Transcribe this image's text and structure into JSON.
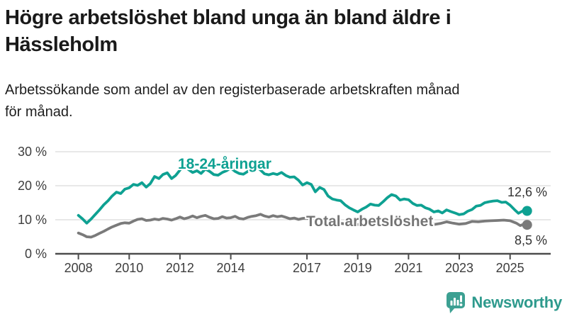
{
  "header": {
    "title_lines": [
      "Högre arbetslöshet bland unga än bland äldre i",
      "Hässleholm"
    ],
    "subtitle_lines": [
      "Arbetssökande som andel av den registerbaserade arbetskraften månad",
      "för månad."
    ]
  },
  "chart_data": {
    "type": "line",
    "title": "Högre arbetslöshet bland unga än bland äldre i Hässleholm",
    "subtitle": "Arbetssökande som andel av den registerbaserade arbetskraften månad för månad.",
    "x_axis": {
      "values": [
        2008,
        2010,
        2012,
        2014,
        2017,
        2019,
        2021,
        2023,
        2025
      ],
      "labels": [
        "2008",
        "2010",
        "2012",
        "2014",
        "2017",
        "2019",
        "2021",
        "2023",
        "2025"
      ]
    },
    "y_axis": {
      "values": [
        30,
        20,
        10,
        0
      ],
      "labels": [
        "30 %",
        "20 %",
        "10 %",
        "0 %"
      ]
    },
    "xlim": [
      2007.09,
      2026.6
    ],
    "ylim": [
      0,
      30
    ],
    "grid": "horizontal",
    "legend_position": "inline-labels",
    "gridline_color": "#d9d9d9",
    "axis_color": "#4d4d4d",
    "series": [
      {
        "name": "18-24-åringar",
        "color": "#0ea192",
        "end_label": "12,6 %",
        "end_value": 12.6,
        "points": [
          [
            2008.0,
            11.3
          ],
          [
            2008.17,
            10.2
          ],
          [
            2008.33,
            9.0
          ],
          [
            2008.5,
            10.2
          ],
          [
            2008.67,
            11.6
          ],
          [
            2008.83,
            12.9
          ],
          [
            2009.0,
            14.4
          ],
          [
            2009.17,
            15.6
          ],
          [
            2009.33,
            17.0
          ],
          [
            2009.5,
            18.1
          ],
          [
            2009.67,
            17.7
          ],
          [
            2009.83,
            19.0
          ],
          [
            2010.0,
            19.4
          ],
          [
            2010.17,
            20.4
          ],
          [
            2010.33,
            20.1
          ],
          [
            2010.5,
            20.9
          ],
          [
            2010.67,
            19.6
          ],
          [
            2010.83,
            20.6
          ],
          [
            2011.0,
            22.7
          ],
          [
            2011.17,
            22.1
          ],
          [
            2011.33,
            23.3
          ],
          [
            2011.5,
            23.8
          ],
          [
            2011.67,
            22.1
          ],
          [
            2011.83,
            23.0
          ],
          [
            2012.0,
            24.6
          ],
          [
            2012.17,
            26.0
          ],
          [
            2012.33,
            24.8
          ],
          [
            2012.5,
            23.9
          ],
          [
            2012.67,
            24.4
          ],
          [
            2012.83,
            23.6
          ],
          [
            2013.0,
            24.9
          ],
          [
            2013.17,
            24.2
          ],
          [
            2013.33,
            23.3
          ],
          [
            2013.5,
            23.1
          ],
          [
            2013.67,
            23.9
          ],
          [
            2013.83,
            24.4
          ],
          [
            2014.0,
            25.2
          ],
          [
            2014.17,
            24.2
          ],
          [
            2014.33,
            23.6
          ],
          [
            2014.5,
            23.4
          ],
          [
            2014.67,
            24.2
          ],
          [
            2014.83,
            24.9
          ],
          [
            2015.0,
            25.7
          ],
          [
            2015.17,
            24.6
          ],
          [
            2015.33,
            23.5
          ],
          [
            2015.5,
            23.2
          ],
          [
            2015.67,
            23.6
          ],
          [
            2015.83,
            23.3
          ],
          [
            2016.0,
            23.9
          ],
          [
            2016.17,
            23.0
          ],
          [
            2016.33,
            22.5
          ],
          [
            2016.5,
            22.6
          ],
          [
            2016.67,
            21.6
          ],
          [
            2016.83,
            20.2
          ],
          [
            2017.0,
            20.9
          ],
          [
            2017.17,
            20.4
          ],
          [
            2017.33,
            18.2
          ],
          [
            2017.5,
            19.5
          ],
          [
            2017.67,
            18.9
          ],
          [
            2017.83,
            17.0
          ],
          [
            2018.0,
            16.1
          ],
          [
            2018.17,
            15.8
          ],
          [
            2018.33,
            15.6
          ],
          [
            2018.5,
            14.4
          ],
          [
            2018.67,
            13.5
          ],
          [
            2018.83,
            12.9
          ],
          [
            2019.0,
            12.3
          ],
          [
            2019.17,
            13.1
          ],
          [
            2019.33,
            13.7
          ],
          [
            2019.5,
            14.6
          ],
          [
            2019.67,
            14.3
          ],
          [
            2019.83,
            14.2
          ],
          [
            2020.0,
            15.3
          ],
          [
            2020.17,
            16.5
          ],
          [
            2020.33,
            17.4
          ],
          [
            2020.5,
            17.0
          ],
          [
            2020.67,
            15.8
          ],
          [
            2020.83,
            16.1
          ],
          [
            2021.0,
            15.9
          ],
          [
            2021.17,
            14.8
          ],
          [
            2021.33,
            14.2
          ],
          [
            2021.5,
            14.3
          ],
          [
            2021.67,
            13.5
          ],
          [
            2021.83,
            13.1
          ],
          [
            2022.0,
            12.3
          ],
          [
            2022.17,
            12.6
          ],
          [
            2022.33,
            12.0
          ],
          [
            2022.5,
            12.9
          ],
          [
            2022.67,
            12.4
          ],
          [
            2022.83,
            12.0
          ],
          [
            2023.0,
            11.5
          ],
          [
            2023.17,
            11.7
          ],
          [
            2023.33,
            12.5
          ],
          [
            2023.5,
            13.0
          ],
          [
            2023.67,
            14.0
          ],
          [
            2023.83,
            14.2
          ],
          [
            2024.0,
            15.0
          ],
          [
            2024.17,
            15.3
          ],
          [
            2024.33,
            15.5
          ],
          [
            2024.5,
            15.6
          ],
          [
            2024.67,
            15.1
          ],
          [
            2024.83,
            15.2
          ],
          [
            2025.0,
            14.3
          ],
          [
            2025.17,
            13.0
          ],
          [
            2025.33,
            11.9
          ],
          [
            2025.5,
            12.6
          ],
          [
            2025.58,
            13.3
          ],
          [
            2025.67,
            12.6
          ]
        ]
      },
      {
        "name": "Total arbetslöshet",
        "color": "#7a7a7a",
        "end_label": "8,5 %",
        "end_value": 8.5,
        "points": [
          [
            2008.0,
            6.1
          ],
          [
            2008.17,
            5.6
          ],
          [
            2008.33,
            5.0
          ],
          [
            2008.5,
            4.9
          ],
          [
            2008.67,
            5.4
          ],
          [
            2008.83,
            6.0
          ],
          [
            2009.0,
            6.6
          ],
          [
            2009.17,
            7.3
          ],
          [
            2009.33,
            7.9
          ],
          [
            2009.5,
            8.4
          ],
          [
            2009.67,
            8.9
          ],
          [
            2009.83,
            9.1
          ],
          [
            2010.0,
            9.0
          ],
          [
            2010.17,
            9.6
          ],
          [
            2010.33,
            10.1
          ],
          [
            2010.5,
            10.3
          ],
          [
            2010.67,
            9.8
          ],
          [
            2010.83,
            9.9
          ],
          [
            2011.0,
            10.2
          ],
          [
            2011.17,
            10.0
          ],
          [
            2011.33,
            10.4
          ],
          [
            2011.5,
            10.2
          ],
          [
            2011.67,
            9.9
          ],
          [
            2011.83,
            10.3
          ],
          [
            2012.0,
            10.8
          ],
          [
            2012.17,
            10.3
          ],
          [
            2012.33,
            10.6
          ],
          [
            2012.5,
            11.1
          ],
          [
            2012.67,
            10.6
          ],
          [
            2012.83,
            11.0
          ],
          [
            2013.0,
            11.3
          ],
          [
            2013.17,
            10.7
          ],
          [
            2013.33,
            10.3
          ],
          [
            2013.5,
            10.4
          ],
          [
            2013.67,
            10.9
          ],
          [
            2013.83,
            10.5
          ],
          [
            2014.0,
            10.6
          ],
          [
            2014.17,
            11.0
          ],
          [
            2014.33,
            10.4
          ],
          [
            2014.5,
            10.2
          ],
          [
            2014.67,
            10.7
          ],
          [
            2014.83,
            11.0
          ],
          [
            2015.0,
            11.2
          ],
          [
            2015.17,
            11.6
          ],
          [
            2015.33,
            11.1
          ],
          [
            2015.5,
            10.8
          ],
          [
            2015.67,
            11.2
          ],
          [
            2015.83,
            10.9
          ],
          [
            2016.0,
            11.1
          ],
          [
            2016.17,
            10.7
          ],
          [
            2016.33,
            10.3
          ],
          [
            2016.5,
            10.5
          ],
          [
            2016.67,
            10.1
          ],
          [
            2016.83,
            10.4
          ],
          [
            2017.0,
            10.5
          ],
          [
            2017.17,
            10.0
          ],
          [
            2017.33,
            9.7
          ],
          [
            2017.5,
            9.9
          ],
          [
            2017.67,
            9.6
          ],
          [
            2017.83,
            9.4
          ],
          [
            2018.0,
            9.3
          ],
          [
            2018.25,
            9.0
          ],
          [
            2018.5,
            8.8
          ],
          [
            2018.75,
            8.7
          ],
          [
            2019.0,
            8.6
          ],
          [
            2019.25,
            8.8
          ],
          [
            2019.5,
            9.0
          ],
          [
            2019.75,
            9.2
          ],
          [
            2020.0,
            9.5
          ],
          [
            2020.25,
            10.2
          ],
          [
            2020.5,
            10.4
          ],
          [
            2020.75,
            10.1
          ],
          [
            2021.0,
            9.9
          ],
          [
            2021.25,
            9.5
          ],
          [
            2021.5,
            9.2
          ],
          [
            2021.75,
            8.9
          ],
          [
            2022.0,
            8.6
          ],
          [
            2022.25,
            8.9
          ],
          [
            2022.5,
            9.4
          ],
          [
            2022.75,
            9.0
          ],
          [
            2023.0,
            8.7
          ],
          [
            2023.25,
            8.9
          ],
          [
            2023.5,
            9.5
          ],
          [
            2023.75,
            9.4
          ],
          [
            2024.0,
            9.6
          ],
          [
            2024.25,
            9.7
          ],
          [
            2024.5,
            9.8
          ],
          [
            2024.75,
            9.9
          ],
          [
            2025.0,
            9.7
          ],
          [
            2025.25,
            9.0
          ],
          [
            2025.4,
            8.3
          ],
          [
            2025.55,
            8.7
          ],
          [
            2025.67,
            8.5
          ]
        ]
      }
    ]
  },
  "branding": {
    "logo_text": "Newsworthy",
    "icon_color": "#3ca092",
    "text_color": "#2e9a8d"
  }
}
